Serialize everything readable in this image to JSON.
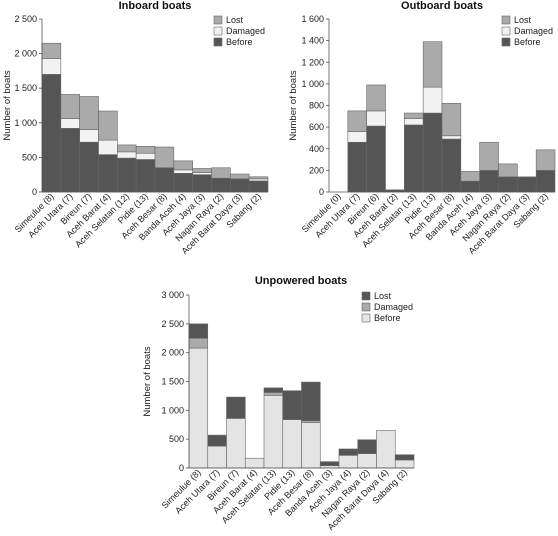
{
  "chart_data": [
    {
      "type": "bar",
      "stacked": true,
      "title": "Inboard boats",
      "ylabel": "Number of boats",
      "ylim": [
        0,
        2500
      ],
      "yticks": [
        "0",
        "500",
        "1 000",
        "1 500",
        "2 000",
        "2 500"
      ],
      "ytick_values": [
        0,
        500,
        1000,
        1500,
        2000,
        2500
      ],
      "legend_position": "top-right",
      "categories": [
        "Simeulue (8)",
        "Aceh Utara (7)",
        "Bireun (7)",
        "Aceh Barat (4)",
        "Aceh Selatan (12)",
        "Pidie (13)",
        "Aceh Besar (8)",
        "Banda Aceh (4)",
        "Aceh Jaya (3)",
        "Nagan Raya (2)",
        "Aceh Barat Daya (3)",
        "Sabang (2)"
      ],
      "series": [
        {
          "name": "Before",
          "color": "#555555",
          "values": [
            1700,
            920,
            720,
            540,
            490,
            470,
            350,
            270,
            250,
            200,
            190,
            160
          ]
        },
        {
          "name": "Damaged",
          "color": "#f2f2f2",
          "values": [
            230,
            140,
            180,
            210,
            90,
            90,
            0,
            50,
            30,
            0,
            0,
            30
          ]
        },
        {
          "name": "Lost",
          "color": "#aaaaaa",
          "values": [
            220,
            350,
            480,
            420,
            100,
            100,
            300,
            130,
            60,
            150,
            70,
            30
          ]
        }
      ],
      "legend_order": [
        "Lost",
        "Damaged",
        "Before"
      ]
    },
    {
      "type": "bar",
      "stacked": true,
      "title": "Outboard boats",
      "ylabel": "Number of boats",
      "ylim": [
        0,
        1600
      ],
      "yticks": [
        "0",
        "200",
        "400",
        "600",
        "800",
        "1 000",
        "1 200",
        "1 400",
        "1 600"
      ],
      "ytick_values": [
        0,
        200,
        400,
        600,
        800,
        1000,
        1200,
        1400,
        1600
      ],
      "legend_position": "top-right",
      "categories": [
        "Simeulue (0)",
        "Aceh Utara (7)",
        "Bireun (6)",
        "Aceh Barat (2)",
        "Aceh Selatan (13)",
        "Pidie (13)",
        "Aceh Besar (8)",
        "Banda Aceh (4)",
        "Aceh Jaya (3)",
        "Nagan Raya (2)",
        "Aceh Barat Daya (3)",
        "Sabang (2)"
      ],
      "series": [
        {
          "name": "Before",
          "color": "#555555",
          "values": [
            0,
            460,
            610,
            20,
            620,
            730,
            490,
            100,
            200,
            140,
            140,
            200
          ]
        },
        {
          "name": "Damaged",
          "color": "#f2f2f2",
          "values": [
            0,
            100,
            140,
            0,
            60,
            240,
            30,
            0,
            0,
            0,
            0,
            0
          ]
        },
        {
          "name": "Lost",
          "color": "#aaaaaa",
          "values": [
            0,
            190,
            240,
            0,
            50,
            420,
            300,
            90,
            260,
            120,
            0,
            190
          ]
        }
      ],
      "legend_order": [
        "Lost",
        "Damaged",
        "Before"
      ]
    },
    {
      "type": "bar",
      "stacked": true,
      "title": "Unpowered boats",
      "ylabel": "Number of boats",
      "ylim": [
        0,
        3000
      ],
      "yticks": [
        "0",
        "500",
        "1 000",
        "1 500",
        "2 000",
        "2 500",
        "3 000"
      ],
      "ytick_values": [
        0,
        500,
        1000,
        1500,
        2000,
        2500,
        3000
      ],
      "legend_position": "top-right",
      "categories": [
        "Simeulue (8)",
        "Aceh Utara (7)",
        "Bireun (7)",
        "Aceh Barat (4)",
        "Aceh Selatan (13)",
        "Pidie (13)",
        "Aceh Besar (8)",
        "Banda Aceh (3)",
        "Aceh Jaya (4)",
        "Nagan Raya (2)",
        "Aceh Barat Daya (4)",
        "Sabang (2)"
      ],
      "series": [
        {
          "name": "Before",
          "color": "#e4e4e4",
          "values": [
            2080,
            380,
            860,
            170,
            1260,
            840,
            790,
            40,
            220,
            250,
            650,
            140
          ]
        },
        {
          "name": "Damaged",
          "color": "#aaaaaa",
          "values": [
            170,
            0,
            0,
            0,
            50,
            0,
            30,
            0,
            0,
            0,
            0,
            0
          ]
        },
        {
          "name": "Lost",
          "color": "#555555",
          "values": [
            250,
            190,
            370,
            0,
            80,
            500,
            670,
            70,
            110,
            240,
            0,
            90
          ]
        }
      ],
      "legend_order": [
        "Lost",
        "Damaged",
        "Before"
      ]
    }
  ]
}
